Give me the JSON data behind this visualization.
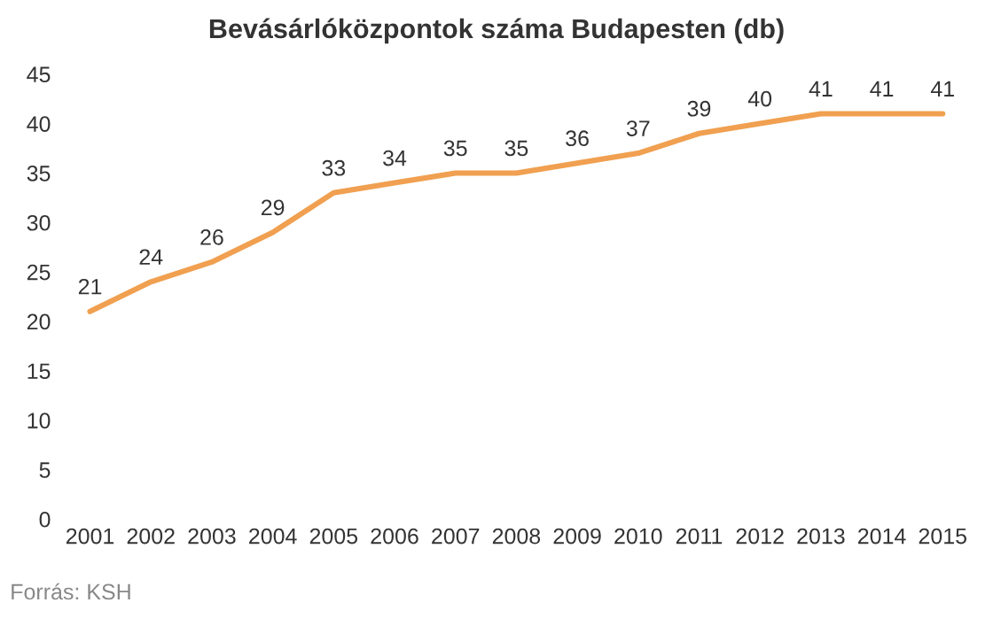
{
  "chart_data": {
    "type": "line",
    "title": "Bevásárlóközpontok száma Budapesten (db)",
    "categories": [
      "2001",
      "2002",
      "2003",
      "2004",
      "2005",
      "2006",
      "2007",
      "2008",
      "2009",
      "2010",
      "2011",
      "2012",
      "2013",
      "2014",
      "2015"
    ],
    "series": [
      {
        "color": "#f0a050",
        "values": [
          21,
          24,
          26,
          29,
          33,
          34,
          35,
          35,
          36,
          37,
          39,
          40,
          41,
          41,
          41
        ]
      }
    ],
    "ylim": [
      0,
      45
    ],
    "yticks": [
      0,
      5,
      10,
      15,
      20,
      25,
      30,
      35,
      40,
      45
    ],
    "data_labels": true,
    "grid": false,
    "legend": false,
    "annotations": [
      "Forrás: KSH"
    ]
  }
}
